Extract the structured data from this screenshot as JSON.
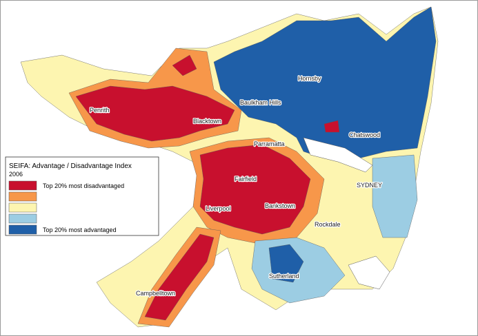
{
  "legend": {
    "title": "SEIFA: Advantage / Disadvantage Index",
    "subtitle": "2006",
    "classes": [
      {
        "color": "#c8102e",
        "label": "Top 20% most disadvantaged"
      },
      {
        "color": "#f7974a"
      },
      {
        "color": "#fdf5b0"
      },
      {
        "color": "#9ccde3"
      },
      {
        "color": "#1f5fa8",
        "label": "Top 20% most advantaged"
      }
    ]
  },
  "places": [
    "Penrith",
    "Blacktown",
    "Baulkham Hills",
    "Hornsby",
    "Parramatta",
    "Chatswood",
    "Fairfield",
    "SYDNEY",
    "Liverpool",
    "Bankstown",
    "Rockdale",
    "Sutherland",
    "Campbelltown"
  ]
}
